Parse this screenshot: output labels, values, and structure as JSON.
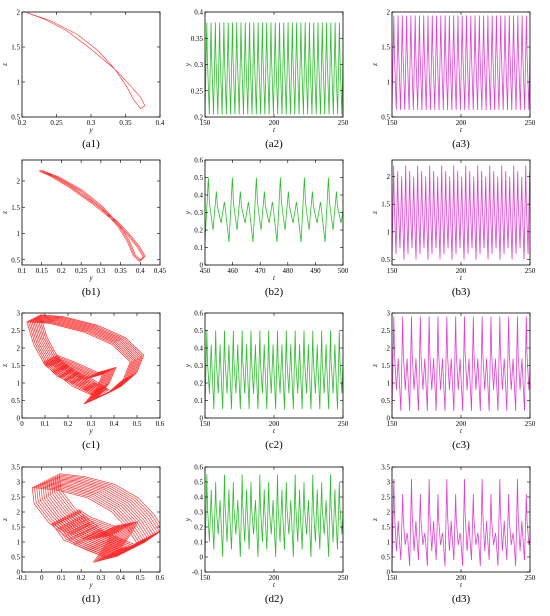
{
  "chart_data": [
    {
      "id": "a1",
      "caption": "(a1)",
      "type": "line",
      "xlabel": "y",
      "ylabel": "z",
      "xlim": [
        0.2,
        0.4
      ],
      "ylim": [
        0.5,
        2
      ],
      "xticks": [
        "0.2",
        "0.25",
        "0.3",
        "0.35",
        "0.4"
      ],
      "yticks": [
        "0.5",
        "1",
        "1.5",
        "2"
      ],
      "color": "#ff2a2a",
      "kind": "phase",
      "phase": {
        "loops": 1,
        "loop_offset": 0,
        "thickness": 1,
        "path": [
          [
            0.207,
            1.99
          ],
          [
            0.24,
            1.88
          ],
          [
            0.28,
            1.68
          ],
          [
            0.31,
            1.45
          ],
          [
            0.335,
            1.18
          ],
          [
            0.352,
            0.93
          ],
          [
            0.362,
            0.74
          ],
          [
            0.372,
            0.62
          ],
          [
            0.378,
            0.66
          ],
          [
            0.372,
            0.78
          ],
          [
            0.355,
            0.97
          ],
          [
            0.335,
            1.18
          ],
          [
            0.3,
            1.47
          ],
          [
            0.265,
            1.73
          ],
          [
            0.232,
            1.9
          ],
          [
            0.207,
            1.99
          ]
        ]
      }
    },
    {
      "id": "a2",
      "caption": "(a2)",
      "type": "line",
      "xlabel": "t",
      "ylabel": "y",
      "xlim": [
        150,
        250
      ],
      "ylim": [
        0.2,
        0.4
      ],
      "xticks": [
        "150",
        "200",
        "250"
      ],
      "yticks": [
        "0.2",
        "0.25",
        "0.3",
        "0.35",
        "0.4"
      ],
      "color": "#2fbd2f",
      "kind": "time",
      "series": {
        "period": 3.1,
        "peaks": [
          0.38
        ],
        "lows": [
          0.205
        ]
      }
    },
    {
      "id": "a3",
      "caption": "(a3)",
      "type": "line",
      "xlabel": "t",
      "ylabel": "z",
      "xlim": [
        150,
        250
      ],
      "ylim": [
        0.5,
        2
      ],
      "xticks": [
        "150",
        "200",
        "250"
      ],
      "yticks": [
        "0.5",
        "1",
        "1.5",
        "2"
      ],
      "color": "#e040d0",
      "kind": "time",
      "series": {
        "period": 3.1,
        "peaks": [
          1.95
        ],
        "lows": [
          0.6
        ]
      }
    },
    {
      "id": "b1",
      "caption": "(b1)",
      "type": "line",
      "xlabel": "y",
      "ylabel": "z",
      "xlim": [
        0.1,
        0.45
      ],
      "ylim": [
        0.4,
        2.4
      ],
      "xticks": [
        "0.1",
        "0.15",
        "0.2",
        "0.25",
        "0.3",
        "0.35",
        "0.4",
        "0.45"
      ],
      "yticks": [
        "0.5",
        "1",
        "1.5",
        "2"
      ],
      "color": "#ff2a2a",
      "kind": "phase",
      "phase": {
        "loops": 3,
        "loop_offset": 0.012,
        "thickness": 1,
        "path": [
          [
            0.145,
            2.2
          ],
          [
            0.19,
            2.07
          ],
          [
            0.25,
            1.82
          ],
          [
            0.3,
            1.52
          ],
          [
            0.345,
            1.15
          ],
          [
            0.37,
            0.85
          ],
          [
            0.385,
            0.58
          ],
          [
            0.4,
            0.48
          ],
          [
            0.41,
            0.56
          ],
          [
            0.395,
            0.75
          ],
          [
            0.37,
            0.98
          ],
          [
            0.34,
            1.22
          ],
          [
            0.28,
            1.58
          ],
          [
            0.22,
            1.9
          ],
          [
            0.17,
            2.12
          ],
          [
            0.145,
            2.2
          ]
        ]
      }
    },
    {
      "id": "b2",
      "caption": "(b2)",
      "type": "line",
      "xlabel": "t",
      "ylabel": "y",
      "xlim": [
        450,
        500
      ],
      "ylim": [
        0,
        0.6
      ],
      "xticks": [
        "450",
        "460",
        "470",
        "480",
        "490",
        "500"
      ],
      "yticks": [
        "0",
        "0.1",
        "0.2",
        "0.3",
        "0.4",
        "0.5",
        "0.6"
      ],
      "color": "#2fbd2f",
      "kind": "time",
      "series": {
        "period": 2.9,
        "peaks": [
          0.5,
          0.42,
          0.36
        ],
        "lows": [
          0.13,
          0.2,
          0.24
        ]
      }
    },
    {
      "id": "b3",
      "caption": "(b3)",
      "type": "line",
      "xlabel": "t",
      "ylabel": "z",
      "xlim": [
        150,
        250
      ],
      "ylim": [
        0.4,
        2.3
      ],
      "xticks": [
        "150",
        "200",
        "250"
      ],
      "yticks": [
        "0.5",
        "1",
        "1.5",
        "2"
      ],
      "color": "#e040d0",
      "kind": "time",
      "series": {
        "period": 2.9,
        "peaks": [
          2.2,
          2.1,
          2.0
        ],
        "lows": [
          0.5,
          0.6,
          0.7
        ]
      }
    },
    {
      "id": "c1",
      "caption": "(c1)",
      "type": "line",
      "xlabel": "y",
      "ylabel": "z",
      "xlim": [
        0,
        0.6
      ],
      "ylim": [
        0,
        3
      ],
      "xticks": [
        "0",
        "0.1",
        "0.2",
        "0.3",
        "0.4",
        "0.5",
        "0.6"
      ],
      "yticks": [
        "0",
        "0.5",
        "1",
        "1.5",
        "2",
        "2.5",
        "3"
      ],
      "color": "#ff2a2a",
      "kind": "phase",
      "phase": {
        "loops": 10,
        "loop_offset": 0.018,
        "thickness": 1.2,
        "path": [
          [
            0.05,
            2.85
          ],
          [
            0.15,
            2.8
          ],
          [
            0.3,
            2.55
          ],
          [
            0.42,
            2.2
          ],
          [
            0.5,
            1.7
          ],
          [
            0.47,
            1.2
          ],
          [
            0.4,
            0.8
          ],
          [
            0.3,
            0.5
          ],
          [
            0.35,
            0.9
          ],
          [
            0.38,
            1.35
          ],
          [
            0.3,
            1.2
          ],
          [
            0.2,
            1.5
          ],
          [
            0.12,
            1.7
          ],
          [
            0.18,
            1.3
          ],
          [
            0.28,
            1.0
          ],
          [
            0.35,
            0.7
          ],
          [
            0.25,
            1.0
          ],
          [
            0.13,
            1.6
          ],
          [
            0.08,
            2.2
          ],
          [
            0.05,
            2.85
          ]
        ]
      }
    },
    {
      "id": "c2",
      "caption": "(c2)",
      "type": "line",
      "xlabel": "t",
      "ylabel": "y",
      "xlim": [
        150,
        250
      ],
      "ylim": [
        0,
        0.6
      ],
      "xticks": [
        "150",
        "200",
        "250"
      ],
      "yticks": [
        "0",
        "0.1",
        "0.2",
        "0.3",
        "0.4",
        "0.5",
        "0.6"
      ],
      "color": "#2fbd2f",
      "kind": "time",
      "series": {
        "period": 3.2,
        "peaks": [
          0.5,
          0.42
        ],
        "lows": [
          0.05,
          0.14
        ]
      }
    },
    {
      "id": "c3",
      "caption": "(c3)",
      "type": "line",
      "xlabel": "t",
      "ylabel": "z",
      "xlim": [
        150,
        250
      ],
      "ylim": [
        0,
        3
      ],
      "xticks": [
        "150",
        "200",
        "250"
      ],
      "yticks": [
        "0",
        "0.5",
        "1",
        "1.5",
        "2",
        "2.5",
        "3"
      ],
      "color": "#e040d0",
      "kind": "time",
      "series": {
        "period": 3.2,
        "peaks": [
          2.9,
          1.7
        ],
        "lows": [
          0.2,
          0.8
        ]
      }
    },
    {
      "id": "d1",
      "caption": "(d1)",
      "type": "line",
      "xlabel": "y",
      "ylabel": "z",
      "xlim": [
        -0.1,
        0.6
      ],
      "ylim": [
        0,
        3.5
      ],
      "xticks": [
        "-0.1",
        "0",
        "0.1",
        "0.2",
        "0.3",
        "0.4",
        "0.5",
        "0.6"
      ],
      "yticks": [
        "0",
        "0.5",
        "1",
        "1.5",
        "2",
        "2.5",
        "3",
        "3.5"
      ],
      "color": "#ff2a2a",
      "kind": "phase",
      "phase": {
        "loops": 14,
        "loop_offset": 0.025,
        "thickness": 1.1,
        "path": [
          [
            0.02,
            3.05
          ],
          [
            0.15,
            2.95
          ],
          [
            0.3,
            2.7
          ],
          [
            0.42,
            2.25
          ],
          [
            0.5,
            1.7
          ],
          [
            0.55,
            1.2
          ],
          [
            0.45,
            0.75
          ],
          [
            0.33,
            0.55
          ],
          [
            0.38,
            1.0
          ],
          [
            0.42,
            1.45
          ],
          [
            0.3,
            1.3
          ],
          [
            0.18,
            1.6
          ],
          [
            0.12,
            1.85
          ],
          [
            0.18,
            1.3
          ],
          [
            0.3,
            0.95
          ],
          [
            0.4,
            0.7
          ],
          [
            0.25,
            1.1
          ],
          [
            0.1,
            1.9
          ],
          [
            0.03,
            2.5
          ],
          [
            0.02,
            3.05
          ]
        ]
      }
    },
    {
      "id": "d2",
      "caption": "(d2)",
      "type": "line",
      "xlabel": "t",
      "ylabel": "y",
      "xlim": [
        150,
        250
      ],
      "ylim": [
        -0.1,
        0.6
      ],
      "xticks": [
        "150",
        "200",
        "250"
      ],
      "yticks": [
        "-0.1",
        "0",
        "0.1",
        "0.2",
        "0.3",
        "0.4",
        "0.5",
        "0.6"
      ],
      "color": "#2fbd2f",
      "kind": "time",
      "series": {
        "period": 3.2,
        "peaks": [
          0.55,
          0.45,
          0.5,
          0.38
        ],
        "lows": [
          0.0,
          0.1,
          0.05,
          0.15
        ]
      }
    },
    {
      "id": "d3",
      "caption": "(d3)",
      "type": "line",
      "xlabel": "t",
      "ylabel": "z",
      "xlim": [
        150,
        250
      ],
      "ylim": [
        0,
        3.5
      ],
      "xticks": [
        "150",
        "200",
        "250"
      ],
      "yticks": [
        "0",
        "0.5",
        "1",
        "1.5",
        "2",
        "2.5",
        "3",
        "3.5"
      ],
      "color": "#e040d0",
      "kind": "time",
      "series": {
        "period": 3.2,
        "peaks": [
          3.1,
          1.7,
          2.6,
          1.3
        ],
        "lows": [
          0.2,
          0.7,
          0.4,
          0.9
        ]
      }
    }
  ]
}
